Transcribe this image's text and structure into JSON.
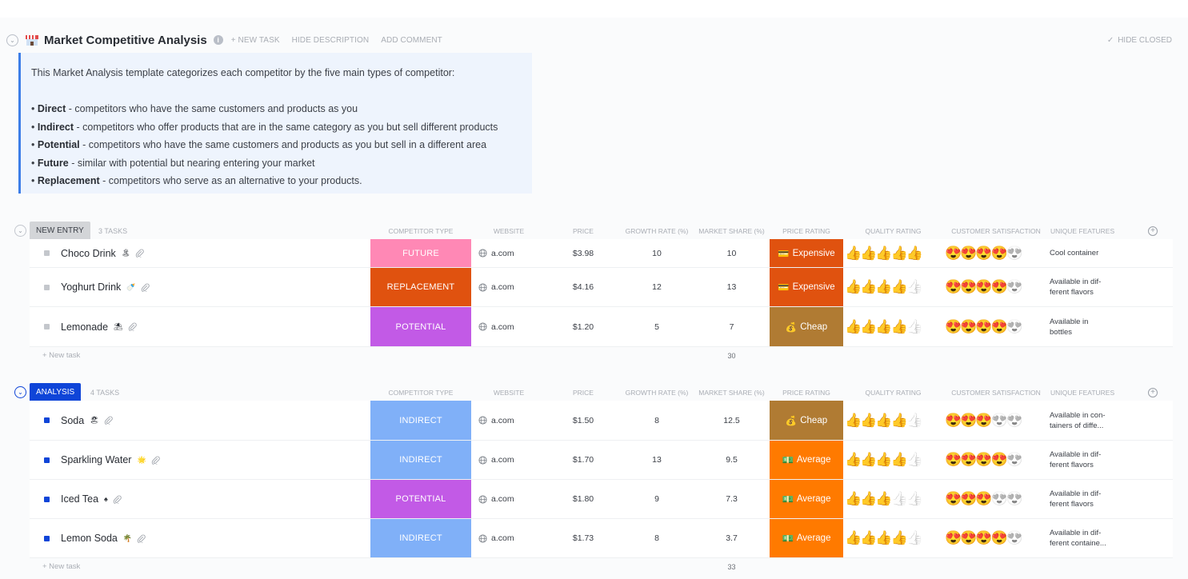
{
  "header": {
    "title": "Market Competitive Analysis",
    "new_task": "+ NEW TASK",
    "hide_description": "HIDE DESCRIPTION",
    "add_comment": "ADD COMMENT",
    "hide_closed": "HIDE CLOSED"
  },
  "description": {
    "intro": "This Market Analysis template categorizes each competitor by the five main types of competitor:",
    "items": [
      {
        "term": "Direct",
        "text": " - competitors who have the same customers and products as you"
      },
      {
        "term": "Indirect",
        "text": " - competitors who offer products that are in the same category as you but sell different products"
      },
      {
        "term": "Potential",
        "text": " - competitors who have the same customers and products as you but sell in a different area"
      },
      {
        "term": "Future",
        "text": " - similar with potential but nearing entering your market"
      },
      {
        "term": "Replacement",
        "text": " - competitors who serve as an alternative to your products."
      }
    ]
  },
  "columns": {
    "competitor_type": "COMPETITOR TYPE",
    "website": "WEBSITE",
    "price": "PRICE",
    "growth_rate": "GROWTH RATE (%)",
    "market_share": "MARKET SHARE (%)",
    "price_rating": "PRICE RATING",
    "quality_rating": "QUALITY RATING",
    "customer_satisfaction": "CUSTOMER SATISFACTION",
    "unique_features": "UNIQUE FEATURES"
  },
  "colors": {
    "future": "#ff88b5",
    "replacement": "#e0520f",
    "potential": "#c25ae6",
    "indirect": "#80b0f8",
    "expensive": "#e0520f",
    "cheap": "#b07b33",
    "average": "#ff7a00",
    "new_entry_pill": "#d3d5d8",
    "analysis_pill": "#0f45d8"
  },
  "groups": [
    {
      "label": "NEW ENTRY",
      "count": "3 TASKS",
      "new_task": "+ New task",
      "total": "30",
      "tasks": [
        {
          "name": "Choco Drink",
          "emoji": "🏝",
          "type": "FUTURE",
          "website": "a.com",
          "price": "$3.98",
          "growth": "10",
          "share": "10",
          "price_rating": "Expensive",
          "price_icon": "💳",
          "quality": 5,
          "satisfaction": 4,
          "features": "Cool container"
        },
        {
          "name": "Yoghurt Drink",
          "emoji": "🍼",
          "type": "REPLACEMENT",
          "website": "a.com",
          "price": "$4.16",
          "growth": "12",
          "share": "13",
          "price_rating": "Expensive",
          "price_icon": "💳",
          "quality": 4,
          "satisfaction": 4,
          "features": "Available in dif-\nferent flavors"
        },
        {
          "name": "Lemonade",
          "emoji": "⛱",
          "type": "POTENTIAL",
          "website": "a.com",
          "price": "$1.20",
          "growth": "5",
          "share": "7",
          "price_rating": "Cheap",
          "price_icon": "💰",
          "quality": 4,
          "satisfaction": 4,
          "features": "Available in\nbottles"
        }
      ]
    },
    {
      "label": "ANALYSIS",
      "count": "4 TASKS",
      "new_task": "+ New task",
      "total": "33",
      "tasks": [
        {
          "name": "Soda",
          "emoji": "🏖",
          "type": "INDIRECT",
          "website": "a.com",
          "price": "$1.50",
          "growth": "8",
          "share": "12.5",
          "price_rating": "Cheap",
          "price_icon": "💰",
          "quality": 4,
          "satisfaction": 3,
          "features": "Available in con-\ntainers of diffe..."
        },
        {
          "name": "Sparkling Water",
          "emoji": "🌟",
          "type": "INDIRECT",
          "website": "a.com",
          "price": "$1.70",
          "growth": "13",
          "share": "9.5",
          "price_rating": "Average",
          "price_icon": "💵",
          "quality": 4,
          "satisfaction": 4,
          "features": "Available in dif-\nferent flavors"
        },
        {
          "name": "Iced Tea",
          "emoji": "♠",
          "type": "POTENTIAL",
          "website": "a.com",
          "price": "$1.80",
          "growth": "9",
          "share": "7.3",
          "price_rating": "Average",
          "price_icon": "💵",
          "quality": 3,
          "satisfaction": 3,
          "features": "Available in dif-\nferent flavors"
        },
        {
          "name": "Lemon Soda",
          "emoji": "🌴",
          "type": "INDIRECT",
          "website": "a.com",
          "price": "$1.73",
          "growth": "8",
          "share": "3.7",
          "price_rating": "Average",
          "price_icon": "💵",
          "quality": 4,
          "satisfaction": 4,
          "features": "Available in dif-\nferent containe..."
        }
      ]
    }
  ]
}
